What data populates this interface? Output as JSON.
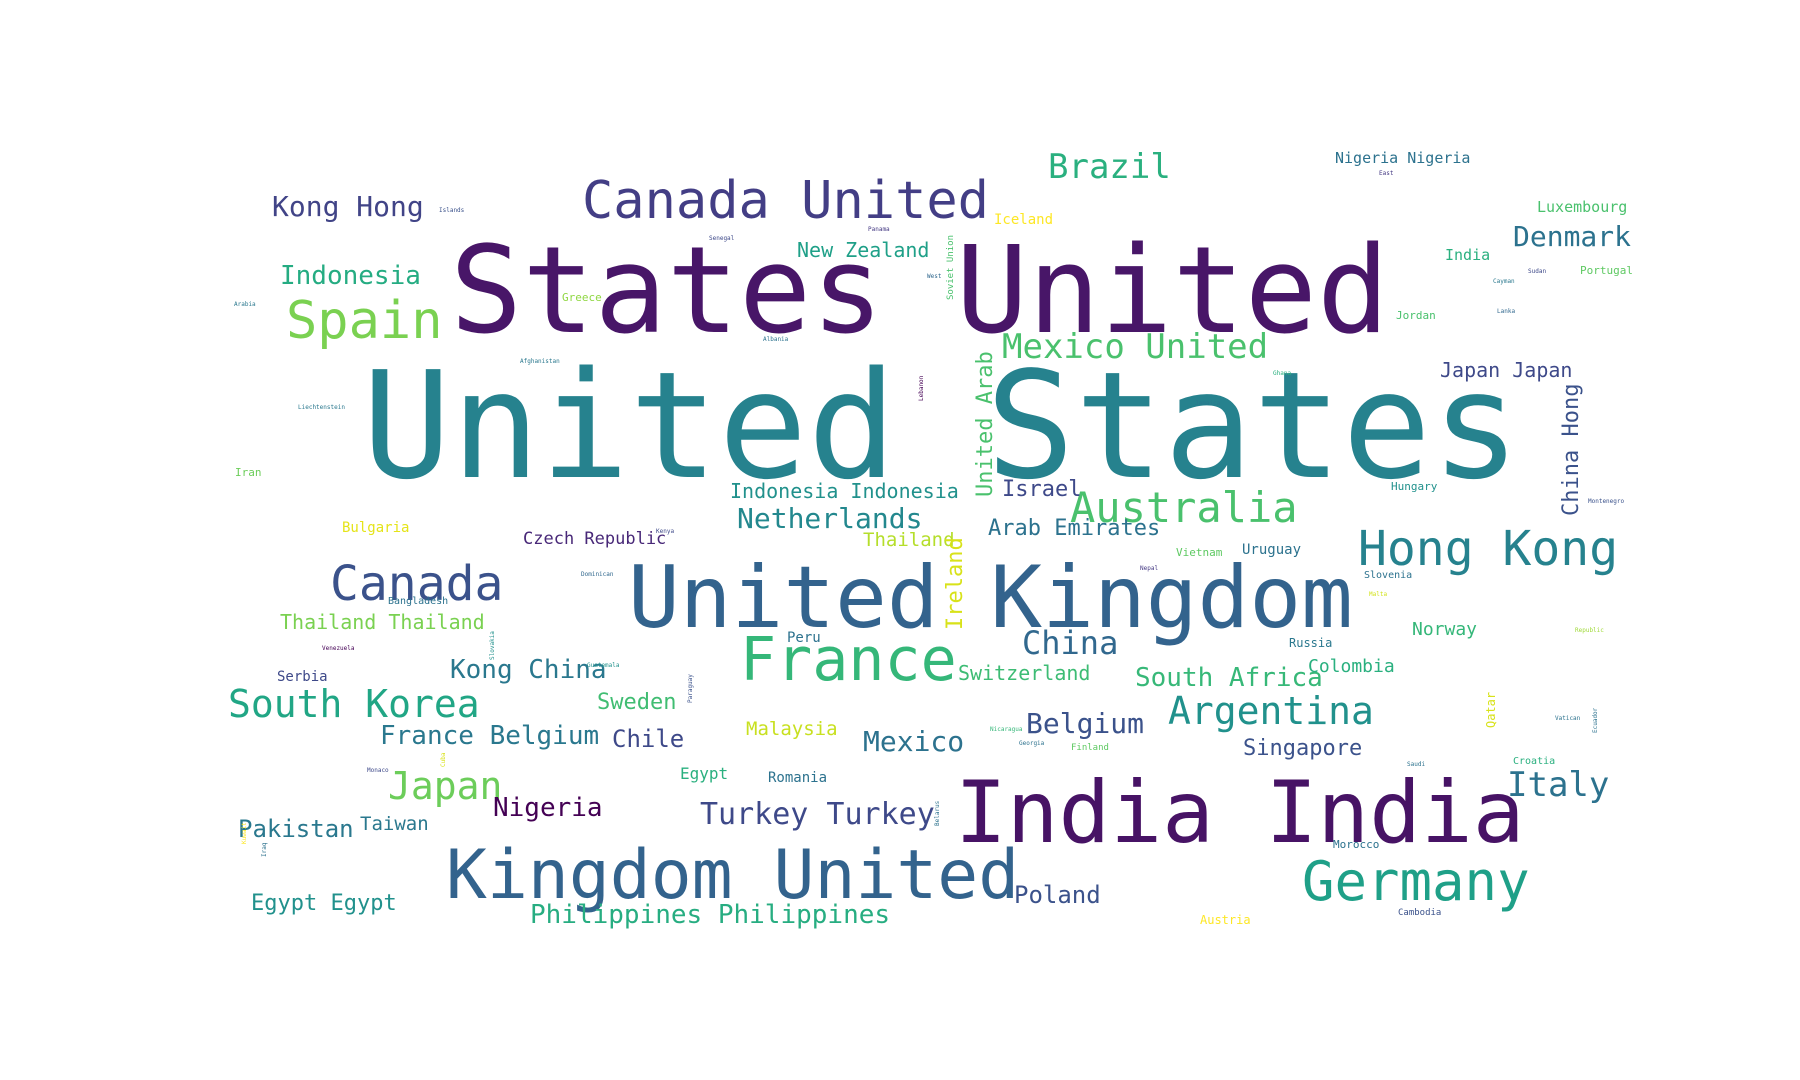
{
  "words": [
    {
      "text": "United States",
      "color": "#26828e",
      "weight": 100
    },
    {
      "text": "States United",
      "color": "#481668",
      "weight": 84
    },
    {
      "text": "United Kingdom",
      "color": "#33638d",
      "weight": 61
    },
    {
      "text": "India India",
      "color": "#471365",
      "weight": 62
    },
    {
      "text": "Kingdom United",
      "color": "#33638d",
      "weight": 48
    },
    {
      "text": "Canada United",
      "color": "#433e85",
      "weight": 37
    },
    {
      "text": "France",
      "color": "#35b779",
      "weight": 44
    },
    {
      "text": "Germany",
      "color": "#1fa088",
      "weight": 38
    },
    {
      "text": "Hong Kong",
      "color": "#26828e",
      "weight": 35
    },
    {
      "text": "Canada",
      "color": "#3b528b",
      "weight": 34
    },
    {
      "text": "Spain",
      "color": "#7ad151",
      "weight": 36
    },
    {
      "text": "Australia",
      "color": "#4ac16d",
      "weight": 29
    },
    {
      "text": "Brazil",
      "color": "#2ab07f",
      "weight": 24
    },
    {
      "text": "Mexico United",
      "color": "#4ac16d",
      "weight": 24
    },
    {
      "text": "South Korea",
      "color": "#21a685",
      "weight": 27
    },
    {
      "text": "Argentina",
      "color": "#21918c",
      "weight": 27
    },
    {
      "text": "Japan",
      "color": "#6ccd5a",
      "weight": 27
    },
    {
      "text": "Italy",
      "color": "#2c728e",
      "weight": 24
    },
    {
      "text": "Kong Hong",
      "color": "#414487",
      "weight": 20
    },
    {
      "text": "Indonesia",
      "color": "#25ac82",
      "weight": 19
    },
    {
      "text": "Denmark",
      "color": "#2c728e",
      "weight": 20
    },
    {
      "text": "Netherlands",
      "color": "#23888e",
      "weight": 20
    },
    {
      "text": "China",
      "color": "#31688e",
      "weight": 22
    },
    {
      "text": "Belgium",
      "color": "#3b528b",
      "weight": 20
    },
    {
      "text": "Mexico",
      "color": "#2c728e",
      "weight": 20
    },
    {
      "text": "South Africa",
      "color": "#37b878",
      "weight": 19
    },
    {
      "text": "Turkey Turkey",
      "color": "#3e4989",
      "weight": 21
    },
    {
      "text": "Kong China",
      "color": "#2a788e",
      "weight": 18
    },
    {
      "text": "France Belgium",
      "color": "#2a788e",
      "weight": 18
    },
    {
      "text": "Nigeria",
      "color": "#440154",
      "weight": 19
    },
    {
      "text": "Pakistan",
      "color": "#2a788e",
      "weight": 17
    },
    {
      "text": "Chile",
      "color": "#3e4989",
      "weight": 17
    },
    {
      "text": "Poland",
      "color": "#3b528b",
      "weight": 17
    },
    {
      "text": "Egypt Egypt",
      "color": "#21918c",
      "weight": 16
    },
    {
      "text": "Philippines Philippines",
      "color": "#27ad81",
      "weight": 19
    },
    {
      "text": "Thailand Thailand",
      "color": "#7ad151",
      "weight": 14
    },
    {
      "text": "Japan Japan",
      "color": "#3e4989",
      "weight": 15
    },
    {
      "text": "Arab Emirates",
      "color": "#2c728e",
      "weight": 16
    },
    {
      "text": "Indonesia Indonesia",
      "color": "#21918c",
      "weight": 15
    },
    {
      "text": "Singapore",
      "color": "#3b528b",
      "weight": 16
    },
    {
      "text": "Switzerland",
      "color": "#3dbc74",
      "weight": 15
    },
    {
      "text": "Sweden",
      "color": "#40bd72",
      "weight": 16
    },
    {
      "text": "New Zealand",
      "color": "#1fa088",
      "weight": 15
    },
    {
      "text": "Israel",
      "color": "#3e4989",
      "weight": 16
    },
    {
      "text": "Thailand",
      "color": "#b5de2b",
      "weight": 14
    },
    {
      "text": "Malaysia",
      "color": "#c8e020",
      "weight": 14
    },
    {
      "text": "Taiwan",
      "color": "#2a788e",
      "weight": 14
    },
    {
      "text": "Norway",
      "color": "#35b779",
      "weight": 14
    },
    {
      "text": "Colombia",
      "color": "#2ab07f",
      "weight": 14
    },
    {
      "text": "Czech Republic",
      "color": "#482878",
      "weight": 13
    },
    {
      "text": "Nigeria Nigeria",
      "color": "#2c728e",
      "weight": 11
    },
    {
      "text": "Luxembourg",
      "color": "#4ac16d",
      "weight": 11
    },
    {
      "text": "Iceland",
      "color": "#fde725",
      "weight": 10
    },
    {
      "text": "India",
      "color": "#2ab07f",
      "weight": 11
    },
    {
      "text": "Uruguay",
      "color": "#2c728e",
      "weight": 10
    },
    {
      "text": "Egypt",
      "color": "#2ab07f",
      "weight": 12
    },
    {
      "text": "Romania",
      "color": "#2c728e",
      "weight": 10
    },
    {
      "text": "Peru",
      "color": "#2c728e",
      "weight": 10
    },
    {
      "text": "Serbia",
      "color": "#3e4989",
      "weight": 10
    },
    {
      "text": "Bulgaria",
      "color": "#e5e419",
      "weight": 10
    },
    {
      "text": "Greece",
      "color": "#90d743",
      "weight": 8
    },
    {
      "text": "Iran",
      "color": "#6ccd5a",
      "weight": 8
    },
    {
      "text": "Jordan",
      "color": "#4ac16d",
      "weight": 8
    },
    {
      "text": "Vietnam",
      "color": "#5ec962",
      "weight": 8
    },
    {
      "text": "Russia",
      "color": "#2a788e",
      "weight": 9
    },
    {
      "text": "Hungary",
      "color": "#21918c",
      "weight": 8
    },
    {
      "text": "Portugal",
      "color": "#5ec962",
      "weight": 8
    },
    {
      "text": "Morocco",
      "color": "#2c728e",
      "weight": 8
    },
    {
      "text": "Austria",
      "color": "#fde725",
      "weight": 9
    },
    {
      "text": "Croatia",
      "color": "#2ab07f",
      "weight": 7
    },
    {
      "text": "Bangladesh",
      "color": "#2c728e",
      "weight": 7
    },
    {
      "text": "Slovenia",
      "color": "#2c728e",
      "weight": 7
    },
    {
      "text": "Finland",
      "color": "#5ec962",
      "weight": 6
    },
    {
      "text": "Cambodia",
      "color": "#3b528b",
      "weight": 6
    },
    {
      "text": "Cayman",
      "color": "#2a788e",
      "weight": 4
    },
    {
      "text": "Sudan",
      "color": "#3e4989",
      "weight": 4
    },
    {
      "text": "Lanka",
      "color": "#31688e",
      "weight": 4
    },
    {
      "text": "Ghana",
      "color": "#2ab07f",
      "weight": 4
    },
    {
      "text": "Jamaica",
      "color": "#2a788e",
      "weight": 4
    },
    {
      "text": "Montenegro",
      "color": "#3b528b",
      "weight": 4
    },
    {
      "text": "Nepal",
      "color": "#443983",
      "weight": 4
    },
    {
      "text": "Malta",
      "color": "#d2e21b",
      "weight": 4
    },
    {
      "text": "Republic",
      "color": "#a0da39",
      "weight": 4
    },
    {
      "text": "Vatican",
      "color": "#2c728e",
      "weight": 4
    },
    {
      "text": "Saudi",
      "color": "#2c728e",
      "weight": 4
    },
    {
      "text": "Kenya",
      "color": "#3e4989",
      "weight": 4
    },
    {
      "text": "Dominican",
      "color": "#31688e",
      "weight": 4
    },
    {
      "text": "Guatemala",
      "color": "#21918c",
      "weight": 4
    },
    {
      "text": "Venezuela",
      "color": "#440154",
      "weight": 4
    },
    {
      "text": "Nicaragua",
      "color": "#35b779",
      "weight": 4
    },
    {
      "text": "Georgia",
      "color": "#2c728e",
      "weight": 4
    },
    {
      "text": "Monaco",
      "color": "#3e4989",
      "weight": 4
    },
    {
      "text": "Islands",
      "color": "#3b528b",
      "weight": 4
    },
    {
      "text": "Senegal",
      "color": "#3e4989",
      "weight": 4
    },
    {
      "text": "Panama",
      "color": "#443983",
      "weight": 4
    },
    {
      "text": "West",
      "color": "#31688e",
      "weight": 4
    },
    {
      "text": "Albania",
      "color": "#2c728e",
      "weight": 4
    },
    {
      "text": "Afghanistan",
      "color": "#2a788e",
      "weight": 4
    },
    {
      "text": "Liechtenstein",
      "color": "#2a788e",
      "weight": 4
    },
    {
      "text": "Arabia",
      "color": "#2a788e",
      "weight": 4
    },
    {
      "text": "East",
      "color": "#443983",
      "weight": 4
    },
    {
      "text": "Soviet Union",
      "color": "#4ac16d",
      "weight": 6
    },
    {
      "text": "Lebanon",
      "color": "#440154",
      "weight": 4
    },
    {
      "text": "United Arab",
      "color": "#4ac16d",
      "weight": 18
    },
    {
      "text": "Ireland",
      "color": "#d8e219",
      "weight": 18
    },
    {
      "text": "China Hong",
      "color": "#3b528b",
      "weight": 17
    },
    {
      "text": "Qatar",
      "color": "#d8e219",
      "weight": 10
    },
    {
      "text": "Ecuador",
      "color": "#2c728e",
      "weight": 4
    },
    {
      "text": "Paraguay",
      "color": "#3b528b",
      "weight": 4
    },
    {
      "text": "Slovakia",
      "color": "#21918c",
      "weight": 4
    },
    {
      "text": "Iraq",
      "color": "#2c728e",
      "weight": 4
    },
    {
      "text": "Kuwait",
      "color": "#fde725",
      "weight": 4
    },
    {
      "text": "Cuba",
      "color": "#d8e219",
      "weight": 4
    },
    {
      "text": "Belarus",
      "color": "#2c728e",
      "weight": 4
    }
  ]
}
